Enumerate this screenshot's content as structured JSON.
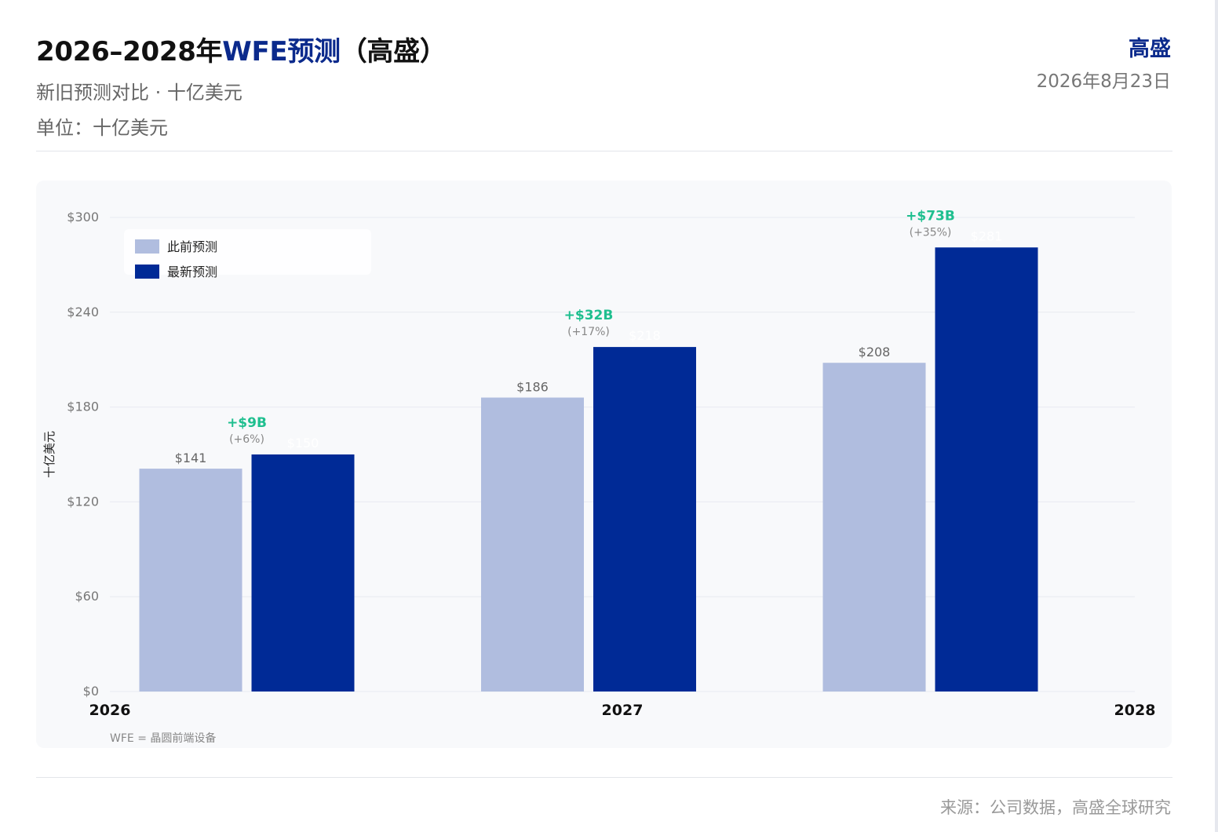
{
  "header": {
    "title_prefix": "2026–2028年",
    "title_accent": "WFE预测",
    "title_suffix": "（高盛）",
    "subtitle": "新旧预测对比 · 十亿美元",
    "unit": "单位：十亿美元",
    "brand": "高盛",
    "date": "2026年8月23日"
  },
  "footer": {
    "note": "WFE = 晶圆前端设备",
    "source": "来源：公司数据，高盛全球研究"
  },
  "colors": {
    "previous": "#b0bddf",
    "latest": "#002a96",
    "delta": "#1fbf8f",
    "accent": "#0b2a8c"
  },
  "chart_data": {
    "type": "bar",
    "categories": [
      "2026",
      "2027",
      "2028"
    ],
    "series": [
      {
        "name": "此前预测",
        "values": [
          141,
          186,
          208
        ],
        "labels": [
          "$141",
          "$186",
          "$208"
        ]
      },
      {
        "name": "最新预测",
        "values": [
          150,
          218,
          281
        ],
        "labels": [
          "$150",
          "$218",
          "$281"
        ]
      }
    ],
    "deltas": [
      {
        "value": "+$9B",
        "pct": "(+6%)"
      },
      {
        "value": "+$32B",
        "pct": "(+17%)"
      },
      {
        "value": "+$73B",
        "pct": "(+35%)"
      }
    ],
    "ylabel": "十亿美元",
    "ylim": [
      0,
      300
    ],
    "yticks": [
      0,
      60,
      120,
      180,
      240,
      300
    ],
    "ytick_labels": [
      "$0",
      "$60",
      "$120",
      "$180",
      "$240",
      "$300"
    ],
    "grid": true,
    "legend": "top-left"
  }
}
